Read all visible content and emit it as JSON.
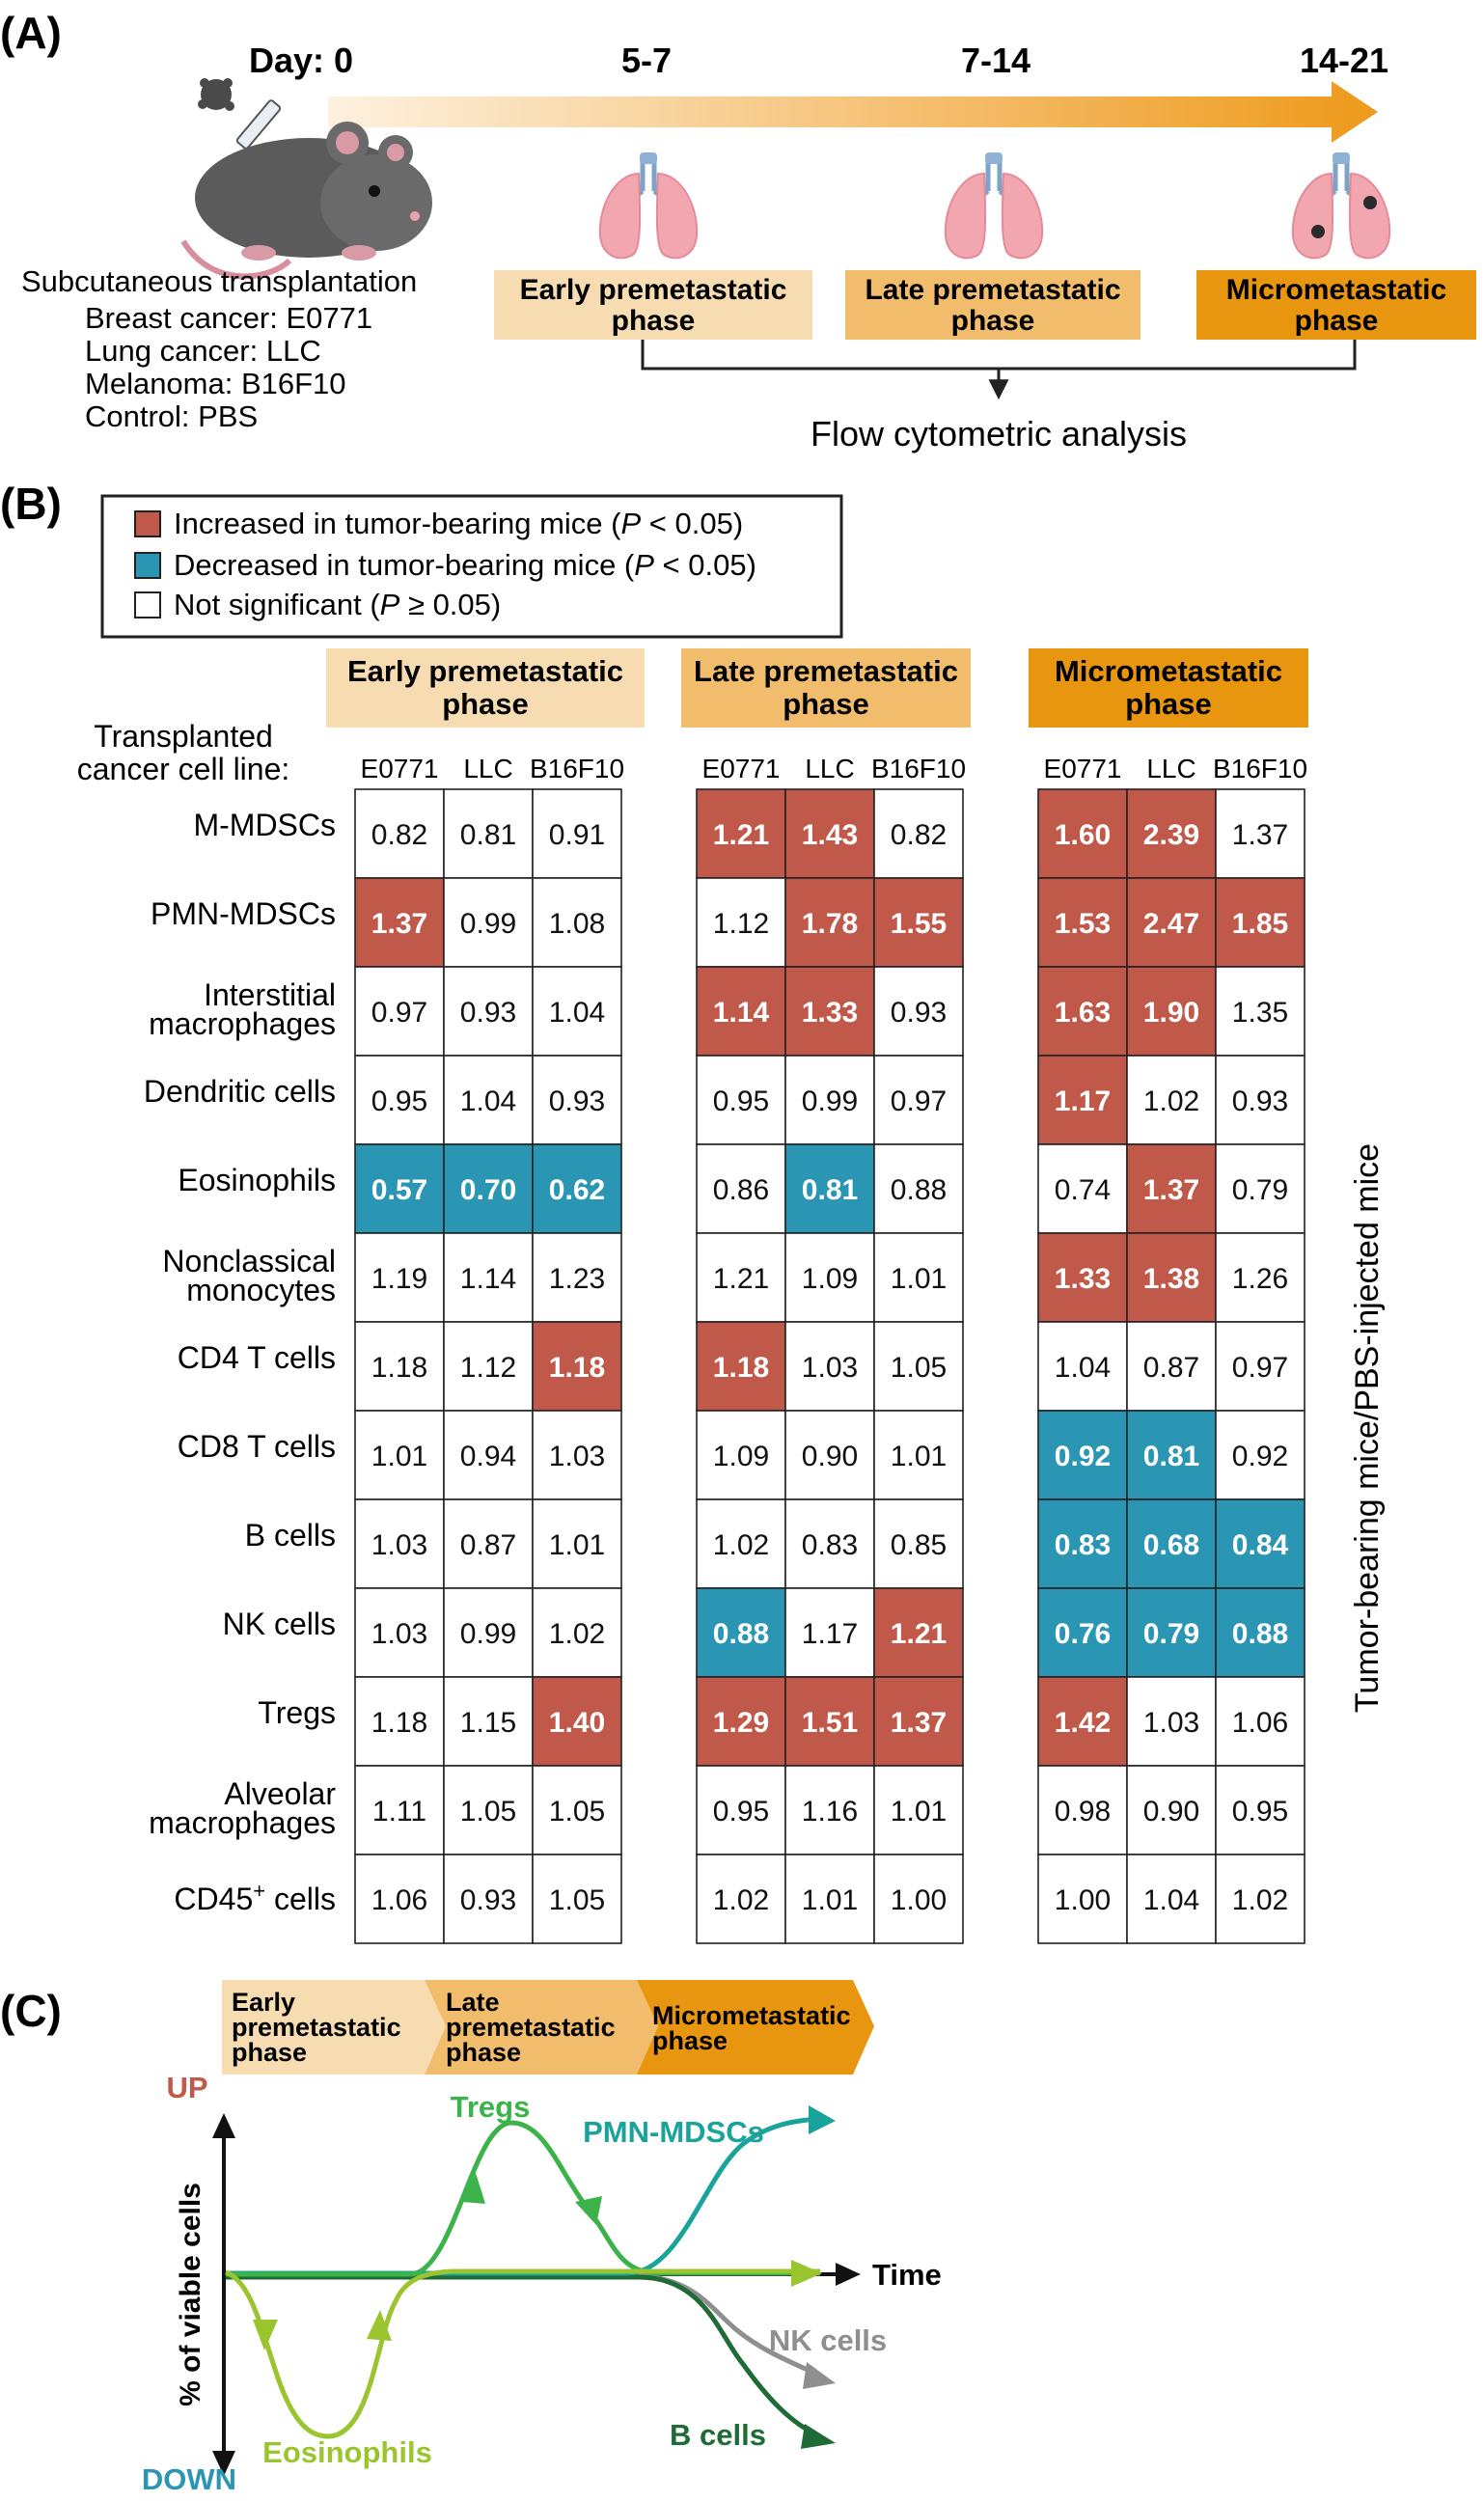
{
  "panel_a": {
    "label": "(A)",
    "days": [
      "Day: 0",
      "5-7",
      "7-14",
      "14-21"
    ],
    "transplant": {
      "title": "Subcutaneous transplantation",
      "lines": [
        "Breast cancer: E0771",
        "Lung cancer: LLC",
        "Melanoma: B16F10",
        "Control: PBS"
      ]
    },
    "phases": [
      [
        "Early premetastatic",
        "phase"
      ],
      [
        "Late premetastatic",
        "phase"
      ],
      [
        "Micrometastatic",
        "phase"
      ]
    ],
    "analysis": "Flow cytometric analysis"
  },
  "panel_b": {
    "label": "(B)",
    "legend": [
      {
        "text": "Increased in tumor-bearing mice (",
        "p": "P",
        "tail": " < 0.05)",
        "color": "#c0594a"
      },
      {
        "text": "Decreased in tumor-bearing mice (",
        "p": "P",
        "tail": " < 0.05)",
        "color": "#2a96b3"
      },
      {
        "text": "Not significant (",
        "p": "P",
        "tail": " ≥ 0.05)",
        "color": "#ffffff"
      }
    ],
    "row_header": [
      "Transplanted",
      "cancer cell line:"
    ],
    "cell_lines": [
      "E0771",
      "LLC",
      "B16F10"
    ],
    "y_axis_label": "Tumor-bearing mice/PBS-injected mice",
    "colors": {
      "up": "#c0594a",
      "down": "#2a96b3",
      "ns": "#ffffff",
      "early": "#f7dcb2",
      "late": "#f1bd6c",
      "micro": "#e8950f"
    },
    "rows": [
      [
        "M-MDSCs"
      ],
      [
        "PMN-MDSCs"
      ],
      [
        "Interstitial",
        "macrophages"
      ],
      [
        "Dendritic cells"
      ],
      [
        "Eosinophils"
      ],
      [
        "Nonclassical",
        "monocytes"
      ],
      [
        "CD4 T cells"
      ],
      [
        "CD8 T cells"
      ],
      [
        "B cells"
      ],
      [
        "NK cells"
      ],
      [
        "Tregs"
      ],
      [
        "Alveolar",
        "macrophages"
      ],
      [
        "CD45",
        "+",
        " cells"
      ]
    ],
    "groups": [
      {
        "header": [
          "Early premetastatic",
          "phase"
        ],
        "values": [
          [
            "0.82",
            "0.81",
            "0.91"
          ],
          [
            "1.37",
            "0.99",
            "1.08"
          ],
          [
            "0.97",
            "0.93",
            "1.04"
          ],
          [
            "0.95",
            "1.04",
            "0.93"
          ],
          [
            "0.57",
            "0.70",
            "0.62"
          ],
          [
            "1.19",
            "1.14",
            "1.23"
          ],
          [
            "1.18",
            "1.12",
            "1.18"
          ],
          [
            "1.01",
            "0.94",
            "1.03"
          ],
          [
            "1.03",
            "0.87",
            "1.01"
          ],
          [
            "1.03",
            "0.99",
            "1.02"
          ],
          [
            "1.18",
            "1.15",
            "1.40"
          ],
          [
            "1.11",
            "1.05",
            "1.05"
          ],
          [
            "1.06",
            "0.93",
            "1.05"
          ]
        ],
        "status": [
          [
            "n",
            "n",
            "n"
          ],
          [
            "u",
            "n",
            "n"
          ],
          [
            "n",
            "n",
            "n"
          ],
          [
            "n",
            "n",
            "n"
          ],
          [
            "d",
            "d",
            "d"
          ],
          [
            "n",
            "n",
            "n"
          ],
          [
            "n",
            "n",
            "u"
          ],
          [
            "n",
            "n",
            "n"
          ],
          [
            "n",
            "n",
            "n"
          ],
          [
            "n",
            "n",
            "n"
          ],
          [
            "n",
            "n",
            "u"
          ],
          [
            "n",
            "n",
            "n"
          ],
          [
            "n",
            "n",
            "n"
          ]
        ]
      },
      {
        "header": [
          "Late premetastatic",
          "phase"
        ],
        "values": [
          [
            "1.21",
            "1.43",
            "0.82"
          ],
          [
            "1.12",
            "1.78",
            "1.55"
          ],
          [
            "1.14",
            "1.33",
            "0.93"
          ],
          [
            "0.95",
            "0.99",
            "0.97"
          ],
          [
            "0.86",
            "0.81",
            "0.88"
          ],
          [
            "1.21",
            "1.09",
            "1.01"
          ],
          [
            "1.18",
            "1.03",
            "1.05"
          ],
          [
            "1.09",
            "0.90",
            "1.01"
          ],
          [
            "1.02",
            "0.83",
            "0.85"
          ],
          [
            "0.88",
            "1.17",
            "1.21"
          ],
          [
            "1.29",
            "1.51",
            "1.37"
          ],
          [
            "0.95",
            "1.16",
            "1.01"
          ],
          [
            "1.02",
            "1.01",
            "1.00"
          ]
        ],
        "status": [
          [
            "u",
            "u",
            "n"
          ],
          [
            "n",
            "u",
            "u"
          ],
          [
            "u",
            "u",
            "n"
          ],
          [
            "n",
            "n",
            "n"
          ],
          [
            "n",
            "d",
            "n"
          ],
          [
            "n",
            "n",
            "n"
          ],
          [
            "u",
            "n",
            "n"
          ],
          [
            "n",
            "n",
            "n"
          ],
          [
            "n",
            "n",
            "n"
          ],
          [
            "d",
            "n",
            "u"
          ],
          [
            "u",
            "u",
            "u"
          ],
          [
            "n",
            "n",
            "n"
          ],
          [
            "n",
            "n",
            "n"
          ]
        ]
      },
      {
        "header": [
          "Micrometastatic",
          "phase"
        ],
        "values": [
          [
            "1.60",
            "2.39",
            "1.37"
          ],
          [
            "1.53",
            "2.47",
            "1.85"
          ],
          [
            "1.63",
            "1.90",
            "1.35"
          ],
          [
            "1.17",
            "1.02",
            "0.93"
          ],
          [
            "0.74",
            "1.37",
            "0.79"
          ],
          [
            "1.33",
            "1.38",
            "1.26"
          ],
          [
            "1.04",
            "0.87",
            "0.97"
          ],
          [
            "0.92",
            "0.81",
            "0.92"
          ],
          [
            "0.83",
            "0.68",
            "0.84"
          ],
          [
            "0.76",
            "0.79",
            "0.88"
          ],
          [
            "1.42",
            "1.03",
            "1.06"
          ],
          [
            "0.98",
            "0.90",
            "0.95"
          ],
          [
            "1.00",
            "1.04",
            "1.02"
          ]
        ],
        "status": [
          [
            "u",
            "u",
            "n"
          ],
          [
            "u",
            "u",
            "u"
          ],
          [
            "u",
            "u",
            "n"
          ],
          [
            "u",
            "n",
            "n"
          ],
          [
            "n",
            "u",
            "n"
          ],
          [
            "u",
            "u",
            "n"
          ],
          [
            "n",
            "n",
            "n"
          ],
          [
            "d",
            "d",
            "n"
          ],
          [
            "d",
            "d",
            "d"
          ],
          [
            "d",
            "d",
            "d"
          ],
          [
            "u",
            "n",
            "n"
          ],
          [
            "n",
            "n",
            "n"
          ],
          [
            "n",
            "n",
            "n"
          ]
        ]
      }
    ]
  },
  "panel_c": {
    "label": "(C)",
    "phases": [
      [
        "Early",
        "premetastatic",
        "phase"
      ],
      [
        "Late",
        "premetastatic",
        "phase"
      ],
      [
        "Micrometastatic",
        "phase"
      ]
    ],
    "up": "UP",
    "down": "DOWN",
    "y_label": "% of viable cells",
    "x_label": "Time",
    "curves": [
      {
        "name": "Tregs",
        "color": "#3cb34a"
      },
      {
        "name": "PMN-MDSCs",
        "color": "#1aa39a"
      },
      {
        "name": "NK cells",
        "color": "#8f8f8f"
      },
      {
        "name": "B cells",
        "color": "#1e6b36"
      },
      {
        "name": "Eosinophils",
        "color": "#9ac52f"
      }
    ]
  }
}
